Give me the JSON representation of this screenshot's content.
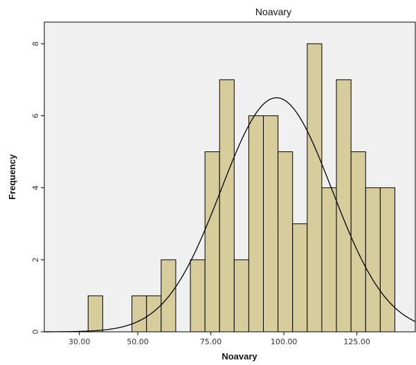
{
  "chart_data": {
    "type": "bar",
    "title": "Noavary",
    "xlabel": "Noavary",
    "ylabel": "Frequency",
    "x_ticks": [
      {
        "value": 30,
        "label": "30.00"
      },
      {
        "value": 50,
        "label": "50.00"
      },
      {
        "value": 75,
        "label": "75.00"
      },
      {
        "value": 100,
        "label": "100.00"
      },
      {
        "value": 125,
        "label": "125.00"
      }
    ],
    "y_ticks": [
      {
        "value": 0,
        "label": "0"
      },
      {
        "value": 2,
        "label": "2"
      },
      {
        "value": 4,
        "label": "4"
      },
      {
        "value": 6,
        "label": "6"
      },
      {
        "value": 8,
        "label": "8"
      }
    ],
    "xlim": [
      18,
      145
    ],
    "ylim": [
      0,
      8.6
    ],
    "bin_width": 5,
    "bins": [
      {
        "start": 33,
        "count": 1
      },
      {
        "start": 48,
        "count": 1
      },
      {
        "start": 53,
        "count": 1
      },
      {
        "start": 58,
        "count": 2
      },
      {
        "start": 68,
        "count": 2
      },
      {
        "start": 73,
        "count": 5
      },
      {
        "start": 78,
        "count": 7
      },
      {
        "start": 83,
        "count": 2
      },
      {
        "start": 88,
        "count": 6
      },
      {
        "start": 93,
        "count": 6
      },
      {
        "start": 98,
        "count": 5
      },
      {
        "start": 103,
        "count": 3
      },
      {
        "start": 108,
        "count": 8
      },
      {
        "start": 113,
        "count": 4
      },
      {
        "start": 118,
        "count": 7
      },
      {
        "start": 123,
        "count": 5
      },
      {
        "start": 128,
        "count": 4
      },
      {
        "start": 133,
        "count": 4
      }
    ],
    "normal_curve": {
      "mean": 97.5,
      "std_dev": 19,
      "peak": 6.5
    },
    "grid": false,
    "colors": {
      "plot_background": "#f0f0f0",
      "bar_fill": "#d7cc9b",
      "bar_stroke": "#000000",
      "curve": "#000000"
    }
  }
}
